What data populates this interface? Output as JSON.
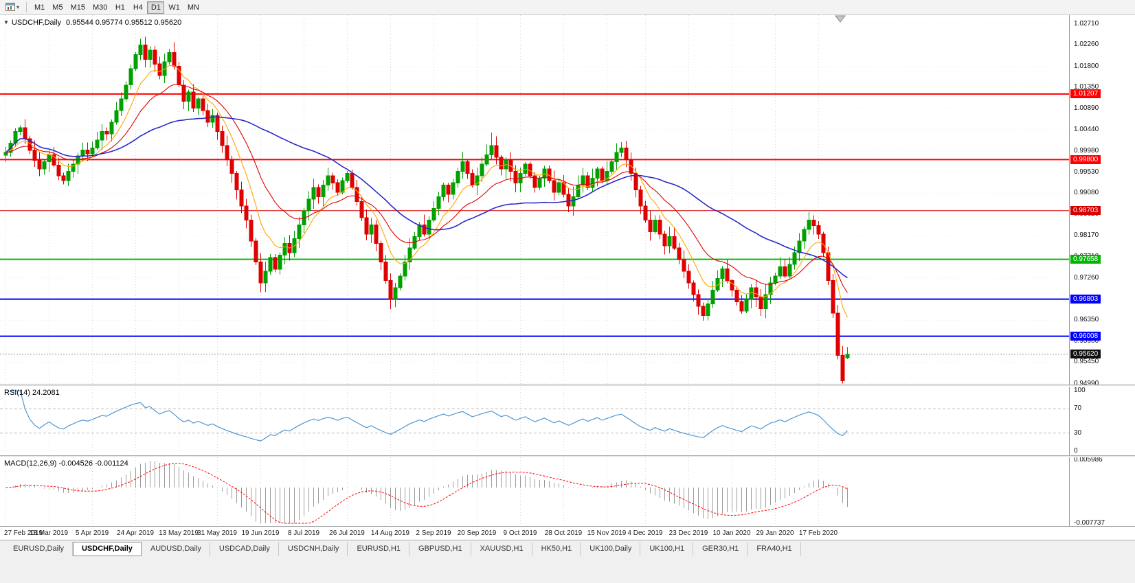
{
  "toolbar": {
    "periods": [
      "M1",
      "M5",
      "M15",
      "M30",
      "H1",
      "H4",
      "D1",
      "W1",
      "MN"
    ],
    "active_period": "D1"
  },
  "chart": {
    "symbol_period": "USDCHF,Daily",
    "ohlc_text": "0.95544 0.95774 0.95512 0.95620",
    "dropdown_glyph": "▼"
  },
  "price_axis": {
    "ticks": [
      "1.02710",
      "1.02260",
      "1.01800",
      "1.01350",
      "1.00890",
      "1.00440",
      "0.99980",
      "0.99530",
      "0.99080",
      "0.98620",
      "0.98170",
      "0.97710",
      "0.97260",
      "0.96800",
      "0.96350",
      "0.95900",
      "0.95450",
      "0.94990"
    ],
    "current_price": "0.95620",
    "current_bg": "#111111"
  },
  "levels": [
    {
      "price": 1.01207,
      "label": "1.01207",
      "color": "#FF0000",
      "width": 2
    },
    {
      "price": 0.998,
      "label": "0.99800",
      "color": "#FF0000",
      "width": 2
    },
    {
      "price": 0.98703,
      "label": "0.98703",
      "color": "#D40000",
      "width": 1
    },
    {
      "price": 0.97658,
      "label": "0.97658",
      "color": "#00B800",
      "width": 2
    },
    {
      "price": 0.96803,
      "label": "0.96803",
      "color": "#0000FF",
      "width": 2
    },
    {
      "price": 0.96008,
      "label": "0.96008",
      "color": "#0000FF",
      "width": 2
    }
  ],
  "rsi_pane": {
    "label": "RSI(14) 24.2081",
    "current": 24.2081,
    "axis_labels": [
      100,
      70,
      30,
      0
    ],
    "upper_level": 70,
    "lower_level": 30,
    "line_color": "#4d96d2"
  },
  "macd_pane": {
    "label": "MACD(12,26,9) -0.004526 -0.001124",
    "current_macd": -0.004526,
    "current_signal": -0.001124,
    "axis_max_label": "0.005986",
    "axis_min_label": "-0.007737",
    "range": [
      -0.007737,
      0.005986
    ],
    "histogram_color": "#9b9b9b",
    "signal_color": "#FF0000"
  },
  "x_axis": {
    "dates": [
      "27 Feb 2019",
      "18 Mar 2019",
      "5 Apr 2019",
      "24 Apr 2019",
      "13 May 2019",
      "31 May 2019",
      "19 Jun 2019",
      "8 Jul 2019",
      "26 Jul 2019",
      "14 Aug 2019",
      "2 Sep 2019",
      "20 Sep 2019",
      "9 Oct 2019",
      "28 Oct 2019",
      "15 Nov 2019",
      "4 Dec 2019",
      "23 Dec 2019",
      "10 Jan 2020",
      "29 Jan 2020",
      "17 Feb 2020"
    ]
  },
  "tabs": {
    "items": [
      "EURUSD,Daily",
      "USDCHF,Daily",
      "AUDUSD,Daily",
      "USDCAD,Daily",
      "USDCNH,Daily",
      "EURUSD,H1",
      "GBPUSD,H1",
      "XAUUSD,H1",
      "HK50,H1",
      "UK100,Daily",
      "UK100,H1",
      "GER30,H1",
      "FRA40,H1"
    ],
    "active": "USDCHF,Daily"
  },
  "chart_data": {
    "type": "candlestick",
    "symbol": "USDCHF",
    "timeframe": "Daily",
    "grid": true,
    "price_range": [
      0.9497,
      1.029
    ],
    "up_color": "#00A000",
    "down_color": "#DF0000",
    "last_candle": {
      "open": 0.95544,
      "high": 0.95774,
      "low": 0.95512,
      "close": 0.9562
    },
    "closes": [
      0.9995,
      1.0015,
      1.004,
      1.0048,
      1.0025,
      1.0,
      0.9978,
      0.996,
      0.9975,
      0.999,
      0.9968,
      0.9945,
      0.9935,
      0.9955,
      0.997,
      0.9988,
      1.0,
      0.9992,
      1.0005,
      1.0022,
      1.004,
      1.0035,
      1.006,
      1.0085,
      1.011,
      1.014,
      1.0175,
      1.0205,
      1.0226,
      1.0195,
      1.0215,
      1.0185,
      1.016,
      1.019,
      1.021,
      1.018,
      1.014,
      1.0105,
      1.0125,
      1.009,
      1.011,
      1.0085,
      1.006,
      1.0075,
      1.004,
      1.001,
      0.998,
      0.995,
      0.9915,
      0.988,
      0.985,
      0.9805,
      0.976,
      0.9715,
      0.974,
      0.977,
      0.9745,
      0.9775,
      0.98,
      0.978,
      0.981,
      0.984,
      0.987,
      0.9895,
      0.992,
      0.99,
      0.9925,
      0.9945,
      0.993,
      0.991,
      0.9935,
      0.995,
      0.992,
      0.989,
      0.9855,
      0.982,
      0.984,
      0.98,
      0.976,
      0.972,
      0.968,
      0.9705,
      0.973,
      0.976,
      0.979,
      0.9815,
      0.984,
      0.982,
      0.985,
      0.9875,
      0.99,
      0.9925,
      0.9905,
      0.993,
      0.9955,
      0.9975,
      0.995,
      0.9925,
      0.9945,
      0.997,
      0.999,
      1.001,
      0.9985,
      0.996,
      0.998,
      0.9955,
      0.993,
      0.995,
      0.997,
      0.9945,
      0.992,
      0.994,
      0.996,
      0.9935,
      0.991,
      0.993,
      0.9905,
      0.988,
      0.99,
      0.9925,
      0.9945,
      0.992,
      0.994,
      0.996,
      0.9935,
      0.9955,
      0.9975,
      0.9995,
      1.0005,
      0.998,
      0.995,
      0.9915,
      0.988,
      0.985,
      0.9825,
      0.985,
      0.982,
      0.9795,
      0.9815,
      0.979,
      0.9765,
      0.974,
      0.9715,
      0.969,
      0.9665,
      0.9645,
      0.967,
      0.97,
      0.9725,
      0.9745,
      0.972,
      0.97,
      0.9675,
      0.9655,
      0.968,
      0.9705,
      0.9685,
      0.966,
      0.969,
      0.9715,
      0.973,
      0.975,
      0.973,
      0.9755,
      0.978,
      0.9805,
      0.983,
      0.985,
      0.9838,
      0.982,
      0.978,
      0.972,
      0.965,
      0.956,
      0.9505,
      0.9562
    ],
    "wick_overrides": {
      "28": {
        "high": 1.0239
      },
      "53": {
        "low": 0.9695
      },
      "80": {
        "low": 0.9659
      },
      "101": {
        "high": 1.0038
      },
      "174": {
        "low": 0.9499
      }
    },
    "moving_averages": [
      {
        "type": "ema",
        "period": 8,
        "color": "#FFA500"
      },
      {
        "type": "ema",
        "period": 18,
        "color": "#E00000"
      },
      {
        "type": "sma",
        "period": 42,
        "color": "#2A2AC8"
      }
    ],
    "indicators": {
      "rsi_period": 14,
      "macd": [
        12,
        26,
        9
      ]
    }
  }
}
